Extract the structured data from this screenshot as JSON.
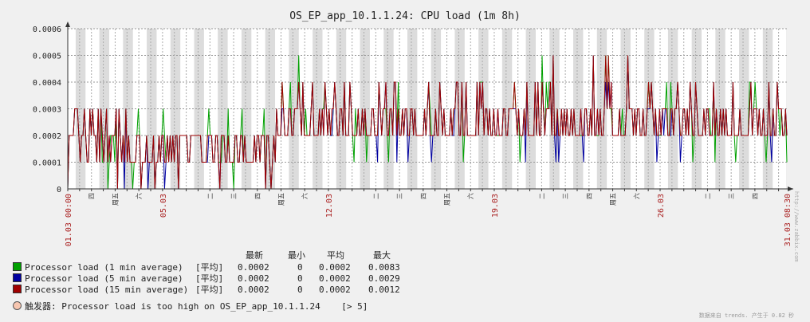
{
  "chart_data": {
    "type": "line",
    "title": "OS_EP_app_10.1.1.24: CPU load (1m 8h)",
    "ylim": [
      0,
      0.0006
    ],
    "yticks": [
      "0.0006",
      "0.0005",
      "0.0004",
      "0.0003",
      "0.0002",
      "0.0001",
      "0"
    ],
    "xlim_days": 30.35,
    "date_labels": [
      {
        "day": 0,
        "text": "01.03 00:00"
      },
      {
        "day": 4,
        "text": "05.03"
      },
      {
        "day": 11,
        "text": "12.03"
      },
      {
        "day": 18,
        "text": "19.03"
      },
      {
        "day": 25,
        "text": "26.03"
      },
      {
        "day": 30.35,
        "text": "31.03 08:30"
      }
    ],
    "weekday_labels": [
      {
        "day": 1,
        "text": "四"
      },
      {
        "day": 2,
        "text": "周五"
      },
      {
        "day": 3,
        "text": "六"
      },
      {
        "day": 6,
        "text": "二"
      },
      {
        "day": 7,
        "text": "三"
      },
      {
        "day": 8,
        "text": "四"
      },
      {
        "day": 9,
        "text": "周五"
      },
      {
        "day": 10,
        "text": "六"
      },
      {
        "day": 13,
        "text": "二"
      },
      {
        "day": 14,
        "text": "三"
      },
      {
        "day": 15,
        "text": "四"
      },
      {
        "day": 16,
        "text": "周五"
      },
      {
        "day": 17,
        "text": "六"
      },
      {
        "day": 20,
        "text": "二"
      },
      {
        "day": 21,
        "text": "三"
      },
      {
        "day": 22,
        "text": "四"
      },
      {
        "day": 23,
        "text": "周五"
      },
      {
        "day": 24,
        "text": "六"
      },
      {
        "day": 27,
        "text": "二"
      },
      {
        "day": 28,
        "text": "三"
      },
      {
        "day": 29,
        "text": "四"
      }
    ],
    "series": [
      {
        "name": "Processor load (1 min average)",
        "color": "#00a000",
        "min_alt": 0
      },
      {
        "name": "Processor load (5 min average)",
        "color": "#0000a0",
        "min_alt": 0
      },
      {
        "name": "Processor load (15 min average)",
        "color": "#a00000",
        "min_alt": 0
      }
    ],
    "segments": [
      {
        "from": 0,
        "to": 3.2,
        "lo": 0.0001,
        "hi": 0.0003
      },
      {
        "from": 3.2,
        "to": 8.8,
        "lo": 0.0001,
        "hi": 0.0002
      },
      {
        "from": 8.8,
        "to": 30.35,
        "lo": 0.0002,
        "hi": 0.0004
      }
    ]
  },
  "legend": {
    "headers": {
      "last": "最新",
      "min": "最小",
      "avg": "平均",
      "max": "最大"
    },
    "rows": [
      {
        "label": "Processor load (1 min average)",
        "func": "[平均]",
        "last": "0.0002",
        "min": "0",
        "avg": "0.0002",
        "max": "0.0083",
        "color": "#00a000"
      },
      {
        "label": "Processor load (5 min average)",
        "func": "[平均]",
        "last": "0.0002",
        "min": "0",
        "avg": "0.0002",
        "max": "0.0029",
        "color": "#0000a0"
      },
      {
        "label": "Processor load (15 min average)",
        "func": "[平均]",
        "last": "0.0002",
        "min": "0",
        "avg": "0.0002",
        "max": "0.0012",
        "color": "#a00000"
      }
    ]
  },
  "trigger": {
    "label": "触发器: Processor load is too high on OS_EP_app_10.1.1.24",
    "threshold": "[> 5]"
  },
  "footer": "数据来自 trends. 产生于 0.82 秒",
  "watermark": "http://www.zabbix.com"
}
